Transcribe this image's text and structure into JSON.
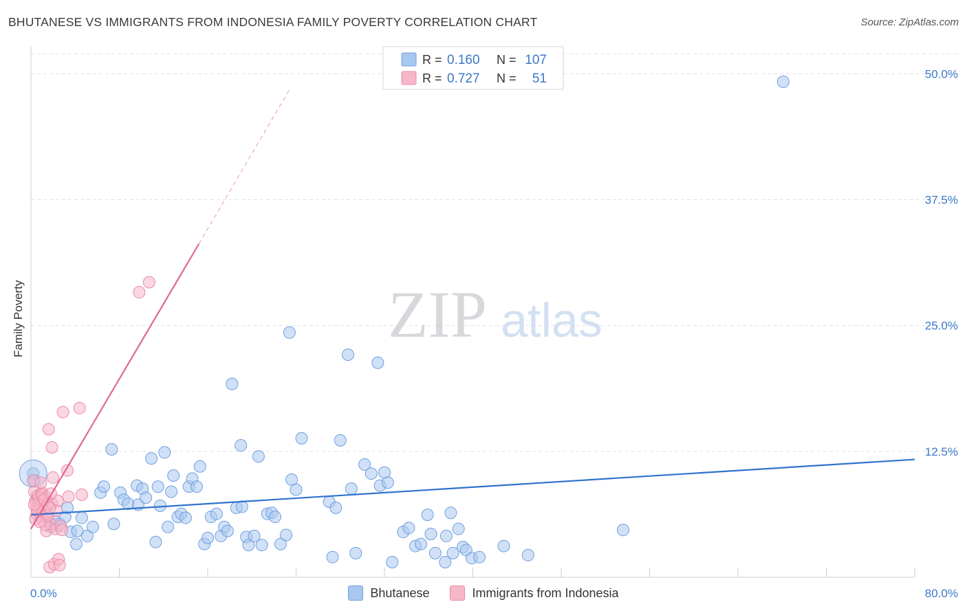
{
  "title": "BHUTANESE VS IMMIGRANTS FROM INDONESIA FAMILY POVERTY CORRELATION CHART",
  "source": "Source: ZipAtlas.com",
  "watermark": {
    "zip": "ZIP",
    "atlas": "atlas"
  },
  "legend_top": {
    "rows": [
      {
        "r_label": "R = ",
        "r_value": "0.160",
        "n_label": "N = ",
        "n_value": "107"
      },
      {
        "r_label": "R = ",
        "r_value": "0.727",
        "n_label": "N = ",
        "n_value": "51"
      }
    ]
  },
  "legend_bottom": [
    "Bhutanese",
    "Immigrants from Indonesia"
  ],
  "colors": {
    "blue_fill": "#a9c8f0",
    "blue_stroke": "#6f9ede",
    "blue_line": "#2f72cc",
    "pink_fill": "#f6b7c9",
    "pink_stroke": "#e98aa8",
    "pink_line": "#e06890",
    "value_text": "#3a78c9",
    "grid": "#dde0e6"
  },
  "chart_data": {
    "type": "scatter",
    "title": "BHUTANESE VS IMMIGRANTS FROM INDONESIA FAMILY POVERTY CORRELATION CHART",
    "xlabel": "",
    "ylabel": "Family Poverty",
    "xlim": [
      0,
      80
    ],
    "ylim": [
      0,
      52
    ],
    "x_tick_labels": [
      "0.0%",
      "80.0%"
    ],
    "y_ticks": [
      12.5,
      25.0,
      37.5,
      50.0
    ],
    "y_tick_labels": [
      "12.5%",
      "25.0%",
      "37.5%",
      "50.0%"
    ],
    "grid": true,
    "series": [
      {
        "name": "Bhutanese",
        "R": 0.16,
        "N": 107,
        "trend": {
          "x0": 0,
          "y0": 6.2,
          "x1": 80,
          "y1": 11.7,
          "dashed_to": null
        },
        "points": [
          [
            0.2,
            10.3
          ],
          [
            0.3,
            9.6
          ],
          [
            0.6,
            7.8
          ],
          [
            1.0,
            7.3
          ],
          [
            1.4,
            6.1
          ],
          [
            1.8,
            5.0
          ],
          [
            2.2,
            5.6
          ],
          [
            2.6,
            5.3
          ],
          [
            3.1,
            6.0
          ],
          [
            3.3,
            6.9
          ],
          [
            3.6,
            4.5
          ],
          [
            4.1,
            3.3
          ],
          [
            4.2,
            4.6
          ],
          [
            4.6,
            5.9
          ],
          [
            5.1,
            4.1
          ],
          [
            5.6,
            5.0
          ],
          [
            6.3,
            8.4
          ],
          [
            6.6,
            9.0
          ],
          [
            7.3,
            12.7
          ],
          [
            7.5,
            5.3
          ],
          [
            8.1,
            8.4
          ],
          [
            8.4,
            7.7
          ],
          [
            8.8,
            7.3
          ],
          [
            9.6,
            9.1
          ],
          [
            9.7,
            7.2
          ],
          [
            10.1,
            8.8
          ],
          [
            10.4,
            7.9
          ],
          [
            10.9,
            11.8
          ],
          [
            11.3,
            3.5
          ],
          [
            11.5,
            9.0
          ],
          [
            11.7,
            7.1
          ],
          [
            12.1,
            12.4
          ],
          [
            12.4,
            5.0
          ],
          [
            12.7,
            8.5
          ],
          [
            12.9,
            10.1
          ],
          [
            13.3,
            6.0
          ],
          [
            13.6,
            6.3
          ],
          [
            14.0,
            5.9
          ],
          [
            14.3,
            9.0
          ],
          [
            14.6,
            9.8
          ],
          [
            15.0,
            9.0
          ],
          [
            15.3,
            11.0
          ],
          [
            15.7,
            3.3
          ],
          [
            16.0,
            3.9
          ],
          [
            16.3,
            6.0
          ],
          [
            16.8,
            6.3
          ],
          [
            17.2,
            4.1
          ],
          [
            17.5,
            5.0
          ],
          [
            17.8,
            4.6
          ],
          [
            18.2,
            19.2
          ],
          [
            18.6,
            6.9
          ],
          [
            19.0,
            13.1
          ],
          [
            19.1,
            7.0
          ],
          [
            19.5,
            4.0
          ],
          [
            19.7,
            3.2
          ],
          [
            20.2,
            4.1
          ],
          [
            20.6,
            12.0
          ],
          [
            20.9,
            3.2
          ],
          [
            21.4,
            6.3
          ],
          [
            21.8,
            6.4
          ],
          [
            22.1,
            6.0
          ],
          [
            22.6,
            3.3
          ],
          [
            23.1,
            4.2
          ],
          [
            23.4,
            24.3
          ],
          [
            23.6,
            9.7
          ],
          [
            24.0,
            8.7
          ],
          [
            24.5,
            13.8
          ],
          [
            27.0,
            7.5
          ],
          [
            27.3,
            2.0
          ],
          [
            27.6,
            6.9
          ],
          [
            28.0,
            13.6
          ],
          [
            28.7,
            22.1
          ],
          [
            29.0,
            8.8
          ],
          [
            29.4,
            2.4
          ],
          [
            30.2,
            11.2
          ],
          [
            30.8,
            10.3
          ],
          [
            31.4,
            21.3
          ],
          [
            31.6,
            9.1
          ],
          [
            32.0,
            10.4
          ],
          [
            32.3,
            9.4
          ],
          [
            32.7,
            1.5
          ],
          [
            33.7,
            4.5
          ],
          [
            34.2,
            4.9
          ],
          [
            34.8,
            3.1
          ],
          [
            35.3,
            3.3
          ],
          [
            35.9,
            6.2
          ],
          [
            36.2,
            4.3
          ],
          [
            36.6,
            2.4
          ],
          [
            37.5,
            1.5
          ],
          [
            37.6,
            4.1
          ],
          [
            38.0,
            6.4
          ],
          [
            38.2,
            2.4
          ],
          [
            38.7,
            4.8
          ],
          [
            39.1,
            3.0
          ],
          [
            39.4,
            2.7
          ],
          [
            39.9,
            1.9
          ],
          [
            40.6,
            2.0
          ],
          [
            42.8,
            3.1
          ],
          [
            45.0,
            2.2
          ],
          [
            53.6,
            4.7
          ],
          [
            68.1,
            49.2
          ]
        ]
      },
      {
        "name": "Immigrants from Indonesia",
        "R": 0.727,
        "N": 51,
        "trend": {
          "x0": 0,
          "y0": 4.8,
          "x1": 15.2,
          "y1": 33.1,
          "dashed_to": {
            "x": 23.5,
            "y": 48.6
          }
        },
        "points": [
          [
            0.2,
            9.6
          ],
          [
            0.3,
            8.5
          ],
          [
            0.4,
            7.6
          ],
          [
            0.5,
            6.9
          ],
          [
            0.5,
            6.3
          ],
          [
            0.6,
            8.1
          ],
          [
            0.7,
            7.4
          ],
          [
            0.8,
            7.0
          ],
          [
            0.9,
            6.0
          ],
          [
            1.0,
            8.4
          ],
          [
            1.1,
            7.8
          ],
          [
            1.1,
            5.6
          ],
          [
            1.2,
            6.8
          ],
          [
            1.3,
            8.0
          ],
          [
            1.4,
            6.4
          ],
          [
            1.4,
            4.6
          ],
          [
            1.5,
            5.9
          ],
          [
            1.6,
            7.2
          ],
          [
            1.6,
            14.7
          ],
          [
            1.7,
            1.0
          ],
          [
            1.8,
            5.3
          ],
          [
            1.9,
            7.3
          ],
          [
            1.9,
            12.9
          ],
          [
            2.0,
            9.9
          ],
          [
            2.1,
            1.3
          ],
          [
            2.2,
            4.8
          ],
          [
            2.4,
            7.6
          ],
          [
            2.5,
            1.8
          ],
          [
            2.6,
            1.2
          ],
          [
            2.7,
            5.1
          ],
          [
            2.9,
            16.4
          ],
          [
            3.3,
            10.6
          ],
          [
            3.4,
            8.0
          ],
          [
            4.4,
            16.8
          ],
          [
            4.6,
            8.2
          ],
          [
            9.8,
            28.3
          ],
          [
            10.7,
            29.3
          ],
          [
            0.4,
            5.8
          ],
          [
            0.9,
            9.4
          ],
          [
            1.3,
            5.2
          ],
          [
            1.5,
            6.1
          ],
          [
            0.7,
            7.9
          ],
          [
            2.3,
            6.6
          ],
          [
            1.0,
            8.2
          ],
          [
            1.2,
            7.7
          ],
          [
            0.6,
            6.6
          ],
          [
            1.7,
            6.9
          ],
          [
            0.3,
            7.2
          ],
          [
            1.8,
            8.3
          ],
          [
            2.8,
            4.7
          ],
          [
            0.8,
            5.5
          ]
        ]
      }
    ]
  }
}
